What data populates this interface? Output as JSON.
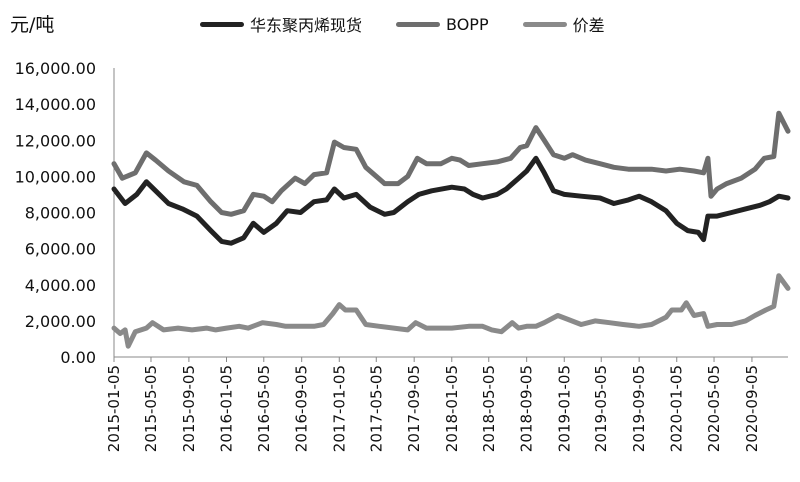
{
  "chart_data": {
    "type": "line",
    "unit_label": "元/吨",
    "ylim": [
      0,
      16000
    ],
    "y_ticks": [
      "0.00",
      "2,000.00",
      "4,000.00",
      "6,000.00",
      "8,000.00",
      "10,000.00",
      "12,000.00",
      "14,000.00",
      "16,000.00"
    ],
    "x_ticks": [
      "2015-01-05",
      "2015-05-05",
      "2015-09-05",
      "2016-01-05",
      "2016-05-05",
      "2016-09-05",
      "2017-01-05",
      "2017-05-05",
      "2017-09-05",
      "2018-01-05",
      "2018-05-05",
      "2018-09-05",
      "2019-01-05",
      "2019-05-05",
      "2019-09-05",
      "2020-01-05",
      "2020-05-05",
      "2020-09-05"
    ],
    "x_end": "2020-12-31",
    "grid": false,
    "legend_position": "top",
    "series": [
      {
        "name": "华东聚丙烯现货",
        "color": "#222222",
        "points": [
          [
            "2015-01-05",
            9300
          ],
          [
            "2015-02-10",
            8500
          ],
          [
            "2015-03-20",
            9000
          ],
          [
            "2015-04-20",
            9700
          ],
          [
            "2015-05-20",
            9200
          ],
          [
            "2015-07-01",
            8500
          ],
          [
            "2015-08-15",
            8200
          ],
          [
            "2015-10-01",
            7800
          ],
          [
            "2015-11-15",
            7000
          ],
          [
            "2015-12-20",
            6400
          ],
          [
            "2016-01-20",
            6300
          ],
          [
            "2016-03-01",
            6600
          ],
          [
            "2016-04-01",
            7400
          ],
          [
            "2016-05-05",
            6900
          ],
          [
            "2016-06-15",
            7400
          ],
          [
            "2016-07-20",
            8100
          ],
          [
            "2016-09-01",
            8000
          ],
          [
            "2016-10-15",
            8600
          ],
          [
            "2016-11-25",
            8700
          ],
          [
            "2016-12-20",
            9300
          ],
          [
            "2017-01-20",
            8800
          ],
          [
            "2017-03-01",
            9000
          ],
          [
            "2017-04-15",
            8300
          ],
          [
            "2017-06-01",
            7900
          ],
          [
            "2017-07-01",
            8000
          ],
          [
            "2017-08-15",
            8600
          ],
          [
            "2017-09-20",
            9000
          ],
          [
            "2017-11-01",
            9200
          ],
          [
            "2018-01-05",
            9400
          ],
          [
            "2018-02-15",
            9300
          ],
          [
            "2018-03-15",
            9000
          ],
          [
            "2018-04-15",
            8800
          ],
          [
            "2018-06-01",
            9000
          ],
          [
            "2018-07-01",
            9300
          ],
          [
            "2018-08-10",
            9900
          ],
          [
            "2018-09-05",
            10300
          ],
          [
            "2018-10-05",
            11000
          ],
          [
            "2018-11-01",
            10200
          ],
          [
            "2018-12-01",
            9200
          ],
          [
            "2019-01-05",
            9000
          ],
          [
            "2019-03-01",
            8900
          ],
          [
            "2019-05-01",
            8800
          ],
          [
            "2019-06-15",
            8500
          ],
          [
            "2019-08-01",
            8700
          ],
          [
            "2019-09-05",
            8900
          ],
          [
            "2019-10-15",
            8600
          ],
          [
            "2019-12-01",
            8100
          ],
          [
            "2020-01-05",
            7400
          ],
          [
            "2020-02-10",
            7000
          ],
          [
            "2020-03-15",
            6900
          ],
          [
            "2020-04-01",
            6500
          ],
          [
            "2020-04-15",
            7800
          ],
          [
            "2020-05-15",
            7800
          ],
          [
            "2020-07-01",
            8000
          ],
          [
            "2020-08-15",
            8200
          ],
          [
            "2020-10-01",
            8400
          ],
          [
            "2020-11-01",
            8600
          ],
          [
            "2020-12-01",
            8900
          ],
          [
            "2020-12-31",
            8800
          ]
        ]
      },
      {
        "name": "BOPP",
        "color": "#6e6e6e",
        "points": [
          [
            "2015-01-05",
            10700
          ],
          [
            "2015-02-01",
            9900
          ],
          [
            "2015-03-15",
            10200
          ],
          [
            "2015-04-20",
            11300
          ],
          [
            "2015-05-20",
            10900
          ],
          [
            "2015-07-01",
            10300
          ],
          [
            "2015-08-20",
            9700
          ],
          [
            "2015-10-01",
            9500
          ],
          [
            "2015-11-15",
            8600
          ],
          [
            "2015-12-20",
            8000
          ],
          [
            "2016-01-20",
            7900
          ],
          [
            "2016-03-01",
            8100
          ],
          [
            "2016-04-01",
            9000
          ],
          [
            "2016-05-05",
            8900
          ],
          [
            "2016-06-01",
            8600
          ],
          [
            "2016-07-01",
            9200
          ],
          [
            "2016-08-15",
            9900
          ],
          [
            "2016-09-15",
            9600
          ],
          [
            "2016-10-15",
            10100
          ],
          [
            "2016-11-25",
            10200
          ],
          [
            "2016-12-20",
            11900
          ],
          [
            "2017-01-20",
            11600
          ],
          [
            "2017-03-01",
            11500
          ],
          [
            "2017-04-01",
            10500
          ],
          [
            "2017-06-01",
            9600
          ],
          [
            "2017-07-15",
            9600
          ],
          [
            "2017-08-15",
            10000
          ],
          [
            "2017-09-15",
            11000
          ],
          [
            "2017-10-15",
            10700
          ],
          [
            "2017-12-01",
            10700
          ],
          [
            "2018-01-05",
            11000
          ],
          [
            "2018-02-01",
            10900
          ],
          [
            "2018-03-01",
            10600
          ],
          [
            "2018-04-15",
            10700
          ],
          [
            "2018-06-01",
            10800
          ],
          [
            "2018-07-15",
            11000
          ],
          [
            "2018-08-15",
            11600
          ],
          [
            "2018-09-05",
            11700
          ],
          [
            "2018-10-05",
            12700
          ],
          [
            "2018-11-01",
            12000
          ],
          [
            "2018-12-01",
            11200
          ],
          [
            "2019-01-05",
            11000
          ],
          [
            "2019-02-01",
            11200
          ],
          [
            "2019-03-15",
            10900
          ],
          [
            "2019-05-01",
            10700
          ],
          [
            "2019-06-15",
            10500
          ],
          [
            "2019-08-01",
            10400
          ],
          [
            "2019-09-05",
            10400
          ],
          [
            "2019-10-15",
            10400
          ],
          [
            "2019-12-01",
            10300
          ],
          [
            "2020-01-15",
            10400
          ],
          [
            "2020-03-01",
            10300
          ],
          [
            "2020-04-01",
            10200
          ],
          [
            "2020-04-15",
            11000
          ],
          [
            "2020-04-25",
            8900
          ],
          [
            "2020-05-15",
            9300
          ],
          [
            "2020-06-15",
            9600
          ],
          [
            "2020-08-01",
            9900
          ],
          [
            "2020-09-15",
            10400
          ],
          [
            "2020-10-15",
            11000
          ],
          [
            "2020-11-15",
            11100
          ],
          [
            "2020-12-01",
            13500
          ],
          [
            "2020-12-31",
            12500
          ]
        ]
      },
      {
        "name": "价差",
        "color": "#8a8a8a",
        "points": [
          [
            "2015-01-05",
            1600
          ],
          [
            "2015-01-25",
            1300
          ],
          [
            "2015-02-10",
            1500
          ],
          [
            "2015-02-20",
            600
          ],
          [
            "2015-03-15",
            1400
          ],
          [
            "2015-04-20",
            1600
          ],
          [
            "2015-05-10",
            1900
          ],
          [
            "2015-06-15",
            1500
          ],
          [
            "2015-08-01",
            1600
          ],
          [
            "2015-09-15",
            1500
          ],
          [
            "2015-11-01",
            1600
          ],
          [
            "2015-12-01",
            1500
          ],
          [
            "2016-01-05",
            1600
          ],
          [
            "2016-02-15",
            1700
          ],
          [
            "2016-03-15",
            1600
          ],
          [
            "2016-05-01",
            1900
          ],
          [
            "2016-06-15",
            1800
          ],
          [
            "2016-07-15",
            1700
          ],
          [
            "2016-09-01",
            1700
          ],
          [
            "2016-10-15",
            1700
          ],
          [
            "2016-11-15",
            1800
          ],
          [
            "2016-12-15",
            2400
          ],
          [
            "2017-01-05",
            2900
          ],
          [
            "2017-01-25",
            2600
          ],
          [
            "2017-03-01",
            2600
          ],
          [
            "2017-04-01",
            1800
          ],
          [
            "2017-05-15",
            1700
          ],
          [
            "2017-07-01",
            1600
          ],
          [
            "2017-08-15",
            1500
          ],
          [
            "2017-09-10",
            1900
          ],
          [
            "2017-10-15",
            1600
          ],
          [
            "2017-12-01",
            1600
          ],
          [
            "2018-01-05",
            1600
          ],
          [
            "2018-03-01",
            1700
          ],
          [
            "2018-04-15",
            1700
          ],
          [
            "2018-05-15",
            1500
          ],
          [
            "2018-06-15",
            1400
          ],
          [
            "2018-07-20",
            1900
          ],
          [
            "2018-08-10",
            1600
          ],
          [
            "2018-09-05",
            1700
          ],
          [
            "2018-10-05",
            1700
          ],
          [
            "2018-11-01",
            1900
          ],
          [
            "2018-12-15",
            2300
          ],
          [
            "2019-01-15",
            2100
          ],
          [
            "2019-03-01",
            1800
          ],
          [
            "2019-04-15",
            2000
          ],
          [
            "2019-06-01",
            1900
          ],
          [
            "2019-07-15",
            1800
          ],
          [
            "2019-09-05",
            1700
          ],
          [
            "2019-10-15",
            1800
          ],
          [
            "2019-12-01",
            2200
          ],
          [
            "2019-12-20",
            2600
          ],
          [
            "2020-01-20",
            2600
          ],
          [
            "2020-02-05",
            3000
          ],
          [
            "2020-03-01",
            2300
          ],
          [
            "2020-04-01",
            2400
          ],
          [
            "2020-04-15",
            1700
          ],
          [
            "2020-05-15",
            1800
          ],
          [
            "2020-07-01",
            1800
          ],
          [
            "2020-08-15",
            2000
          ],
          [
            "2020-09-15",
            2300
          ],
          [
            "2020-10-20",
            2600
          ],
          [
            "2020-11-15",
            2800
          ],
          [
            "2020-12-01",
            4500
          ],
          [
            "2020-12-31",
            3800
          ]
        ]
      }
    ]
  }
}
